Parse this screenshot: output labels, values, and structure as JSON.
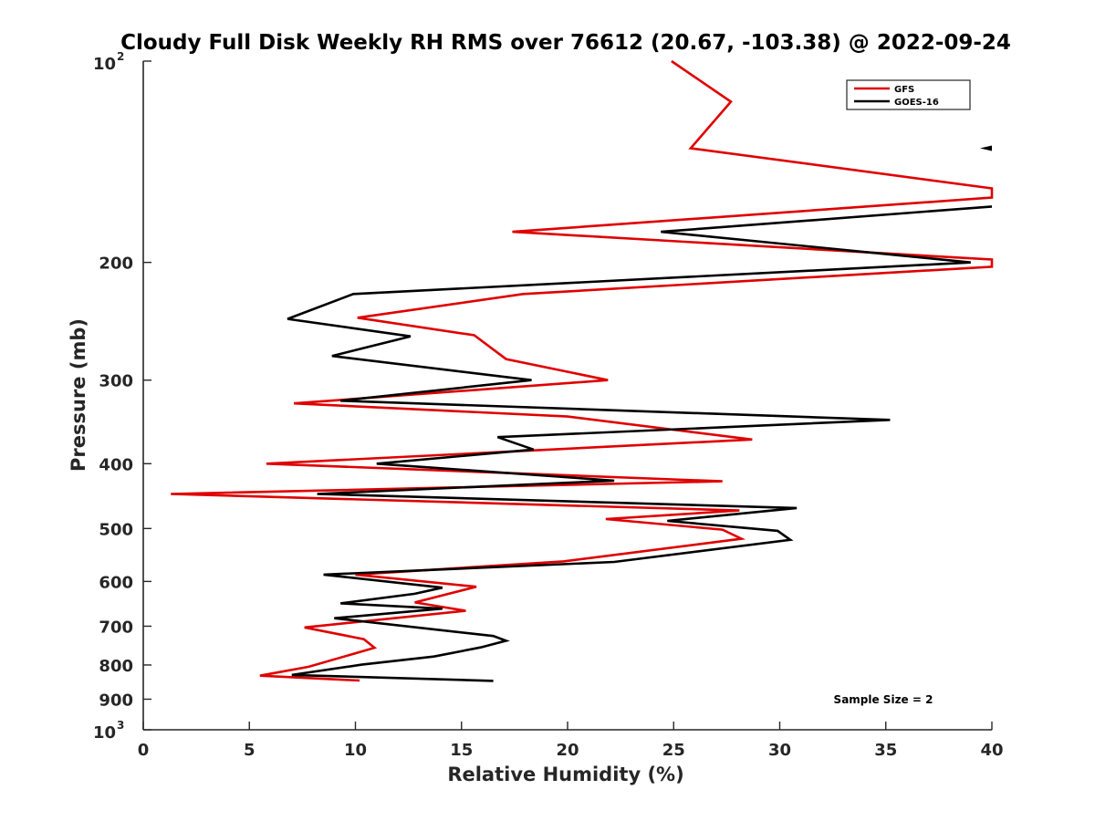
{
  "chart_data": {
    "type": "line",
    "title": "Cloudy Full Disk Weekly RH RMS over 76612 (20.67, -103.38) @ 2022-09-24",
    "xlabel": "Relative Humidity (%)",
    "ylabel": "Pressure (mb)",
    "xlim": [
      0,
      40
    ],
    "ylim": [
      100,
      1000
    ],
    "yscale": "log",
    "y_reversed": true,
    "x_ticks": [
      0,
      5,
      10,
      15,
      20,
      25,
      30,
      35,
      40
    ],
    "x_tick_labels": [
      "0",
      "5",
      "10",
      "15",
      "20",
      "25",
      "30",
      "35",
      "40"
    ],
    "y_ticks": [
      {
        "value": 100,
        "base": "10",
        "exp": "2"
      },
      {
        "value": 200,
        "label": "200"
      },
      {
        "value": 300,
        "label": "300"
      },
      {
        "value": 400,
        "label": "400"
      },
      {
        "value": 500,
        "label": "500"
      },
      {
        "value": 600,
        "label": "600"
      },
      {
        "value": 700,
        "label": "700"
      },
      {
        "value": 800,
        "label": "800"
      },
      {
        "value": 900,
        "label": "900"
      },
      {
        "value": 1000,
        "base": "10",
        "exp": "3"
      }
    ],
    "series": [
      {
        "name": "GFS",
        "color": "#e00000",
        "points": [
          [
            24.9,
            100
          ],
          [
            27.7,
            115
          ],
          [
            25.8,
            135
          ],
          [
            40.0,
            155
          ],
          [
            40.0,
            160
          ],
          [
            17.4,
            180
          ],
          [
            40.0,
            198
          ],
          [
            40.0,
            203
          ],
          [
            17.9,
            223
          ],
          [
            10.1,
            242
          ],
          [
            15.6,
            257
          ],
          [
            17.1,
            279
          ],
          [
            21.9,
            300
          ],
          [
            7.1,
            325
          ],
          [
            20.0,
            340
          ],
          [
            28.7,
            368
          ],
          [
            5.8,
            400
          ],
          [
            27.3,
            425
          ],
          [
            1.3,
            444
          ],
          [
            28.1,
            470
          ],
          [
            21.8,
            484
          ],
          [
            27.3,
            502
          ],
          [
            28.2,
            518
          ],
          [
            19.8,
            560
          ],
          [
            10.0,
            586
          ],
          [
            15.7,
            611
          ],
          [
            12.8,
            645
          ],
          [
            15.2,
            664
          ],
          [
            7.6,
            703
          ],
          [
            10.4,
            732
          ],
          [
            10.9,
            754
          ],
          [
            7.8,
            805
          ],
          [
            5.5,
            830
          ],
          [
            10.2,
            844
          ]
        ]
      },
      {
        "name": "GOES-16",
        "color": "#000000",
        "points": [
          [
            40.0,
            165
          ],
          [
            24.4,
            180
          ],
          [
            39.0,
            200
          ],
          [
            9.9,
            223
          ],
          [
            6.8,
            243
          ],
          [
            12.6,
            258
          ],
          [
            8.9,
            276
          ],
          [
            18.3,
            300
          ],
          [
            9.3,
            322
          ],
          [
            35.2,
            344
          ],
          [
            16.7,
            365
          ],
          [
            18.4,
            381
          ],
          [
            11.0,
            400
          ],
          [
            22.2,
            424
          ],
          [
            8.2,
            444
          ],
          [
            30.8,
            466
          ],
          [
            24.7,
            487
          ],
          [
            29.9,
            504
          ],
          [
            30.5,
            520
          ],
          [
            22.2,
            561
          ],
          [
            8.5,
            586
          ],
          [
            14.1,
            613
          ],
          [
            12.8,
            626
          ],
          [
            9.3,
            647
          ],
          [
            14.1,
            659
          ],
          [
            9.0,
            681
          ],
          [
            16.5,
            724
          ],
          [
            17.1,
            736
          ],
          [
            15.9,
            753
          ],
          [
            13.7,
            777
          ],
          [
            10.3,
            799
          ],
          [
            7.0,
            828
          ],
          [
            16.5,
            845
          ]
        ],
        "extra_marker": {
          "type": "left-triangle",
          "x": 40.0,
          "y": 135
        }
      }
    ],
    "legend": {
      "position": "top-right",
      "entries": [
        "GFS",
        "GOES-16"
      ]
    },
    "annotation": "Sample Size = 2"
  }
}
